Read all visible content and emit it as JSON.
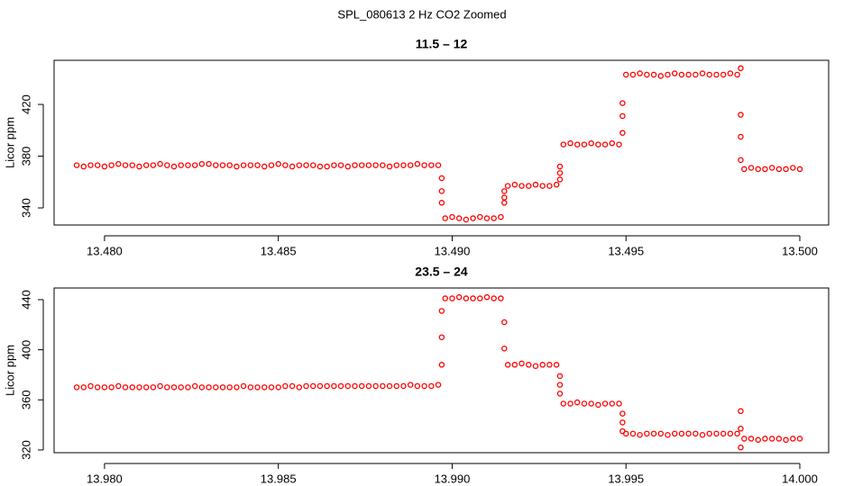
{
  "title": "SPL_080613  2 Hz CO2 Zoomed",
  "chart_data": [
    {
      "type": "scatter",
      "title": "11.5 – 12",
      "ylabel": "Licor ppm",
      "color": "#ff0000",
      "xlim": [
        13.47855,
        13.50083
      ],
      "ylim": [
        326.8,
        454.1
      ],
      "xticks": [
        {
          "value": 13.48,
          "label": "13.480"
        },
        13.485,
        {
          "value": 13.49,
          "label": "13.490"
        },
        13.495,
        {
          "value": 13.5,
          "label": "13.500"
        }
      ],
      "yticks": [
        340,
        380,
        420
      ],
      "x": [
        13.4792,
        13.4794,
        13.4796,
        13.4798,
        13.48,
        13.4802,
        13.4804,
        13.4806,
        13.4808,
        13.481,
        13.4812,
        13.4814,
        13.4816,
        13.4818,
        13.482,
        13.4822,
        13.4824,
        13.4826,
        13.4828,
        13.483,
        13.4832,
        13.4834,
        13.4836,
        13.4838,
        13.484,
        13.4842,
        13.4844,
        13.4846,
        13.4848,
        13.485,
        13.4852,
        13.4854,
        13.4856,
        13.4858,
        13.486,
        13.4862,
        13.4864,
        13.4866,
        13.4868,
        13.487,
        13.4872,
        13.4874,
        13.4876,
        13.4878,
        13.488,
        13.4882,
        13.4884,
        13.4886,
        13.4888,
        13.489,
        13.4892,
        13.4894,
        13.4896,
        13.4897,
        13.4897,
        13.4897,
        13.4898,
        13.49,
        13.4902,
        13.4904,
        13.4906,
        13.4908,
        13.491,
        13.4912,
        13.4914,
        13.4915,
        13.4915,
        13.4915,
        13.4916,
        13.4918,
        13.492,
        13.4922,
        13.4924,
        13.4926,
        13.4928,
        13.493,
        13.4931,
        13.4931,
        13.4931,
        13.4932,
        13.4934,
        13.4936,
        13.4938,
        13.494,
        13.4942,
        13.4944,
        13.4946,
        13.4948,
        13.4949,
        13.4949,
        13.4949,
        13.495,
        13.4952,
        13.4954,
        13.4956,
        13.4958,
        13.496,
        13.4962,
        13.4964,
        13.4966,
        13.4968,
        13.497,
        13.4972,
        13.4974,
        13.4976,
        13.4978,
        13.498,
        13.4982,
        13.4983,
        13.4983,
        13.4983,
        13.4983,
        13.4984,
        13.4986,
        13.4988,
        13.499,
        13.4992,
        13.4994,
        13.4996,
        13.4998,
        13.5
      ],
      "values": [
        373,
        372,
        373,
        373,
        372,
        373,
        374,
        373,
        373,
        372,
        373,
        373,
        374,
        373,
        372,
        373,
        373,
        373,
        374,
        374,
        373,
        373,
        373,
        372,
        373,
        373,
        373,
        372,
        373,
        374,
        373,
        372,
        373,
        373,
        373,
        372,
        372,
        373,
        373,
        372,
        373,
        373,
        373,
        373,
        373,
        372,
        373,
        373,
        373,
        374,
        373,
        373,
        373,
        363,
        353,
        344,
        332,
        333,
        332,
        331,
        332,
        333,
        332,
        332,
        333,
        344,
        348,
        353,
        357,
        358,
        357,
        357,
        358,
        357,
        357,
        358,
        362,
        367,
        372,
        389,
        390,
        389,
        389,
        390,
        389,
        389,
        390,
        389,
        398,
        411,
        421,
        443,
        443,
        444,
        443,
        443,
        442,
        443,
        444,
        443,
        443,
        443,
        444,
        443,
        443,
        443,
        444,
        443,
        448,
        412,
        395,
        377,
        370,
        371,
        370,
        370,
        371,
        370,
        370,
        371,
        370
      ]
    },
    {
      "type": "scatter",
      "title": "23.5 – 24",
      "ylabel": "Licor ppm",
      "color": "#ff0000",
      "xlim": [
        13.97855,
        14.00083
      ],
      "ylim": [
        317.8,
        449.3
      ],
      "xticks": [
        {
          "value": 13.98,
          "label": "13.980"
        },
        13.985,
        {
          "value": 13.99,
          "label": "13.990"
        },
        13.995,
        {
          "value": 14,
          "label": "14.000"
        }
      ],
      "yticks": [
        320,
        360,
        400,
        440
      ],
      "x": [
        13.9792,
        13.9794,
        13.9796,
        13.9798,
        13.98,
        13.9802,
        13.9804,
        13.9806,
        13.9808,
        13.981,
        13.9812,
        13.9814,
        13.9816,
        13.9818,
        13.982,
        13.9822,
        13.9824,
        13.9826,
        13.9828,
        13.983,
        13.9832,
        13.9834,
        13.9836,
        13.9838,
        13.984,
        13.9842,
        13.9844,
        13.9846,
        13.9848,
        13.985,
        13.9852,
        13.9854,
        13.9856,
        13.9858,
        13.986,
        13.9862,
        13.9864,
        13.9866,
        13.9868,
        13.987,
        13.9872,
        13.9874,
        13.9876,
        13.9878,
        13.988,
        13.9882,
        13.9884,
        13.9886,
        13.9888,
        13.989,
        13.9892,
        13.9894,
        13.9896,
        13.9897,
        13.9897,
        13.9897,
        13.9898,
        13.99,
        13.9902,
        13.9904,
        13.9906,
        13.9908,
        13.991,
        13.9912,
        13.9914,
        13.9915,
        13.9915,
        13.9916,
        13.9918,
        13.992,
        13.9922,
        13.9924,
        13.9926,
        13.9928,
        13.993,
        13.9931,
        13.9931,
        13.9931,
        13.9932,
        13.9934,
        13.9936,
        13.9938,
        13.994,
        13.9942,
        13.9944,
        13.9946,
        13.9948,
        13.9949,
        13.9949,
        13.9949,
        13.995,
        13.9952,
        13.9954,
        13.9956,
        13.9958,
        13.996,
        13.9962,
        13.9964,
        13.9966,
        13.9968,
        13.997,
        13.9972,
        13.9974,
        13.9976,
        13.9978,
        13.998,
        13.9982,
        13.9983,
        13.9983,
        13.9983,
        13.9984,
        13.9986,
        13.9988,
        13.999,
        13.9992,
        13.9994,
        13.9996,
        13.9998,
        14
      ],
      "values": [
        370,
        370,
        371,
        370,
        370,
        370,
        371,
        370,
        370,
        370,
        370,
        370,
        371,
        370,
        370,
        370,
        370,
        371,
        370,
        370,
        370,
        370,
        370,
        370,
        371,
        370,
        370,
        370,
        370,
        370,
        371,
        371,
        370,
        371,
        371,
        371,
        371,
        371,
        371,
        371,
        371,
        371,
        371,
        371,
        371,
        371,
        371,
        371,
        372,
        371,
        371,
        371,
        372,
        388,
        410,
        431,
        441,
        441,
        442,
        441,
        441,
        441,
        442,
        441,
        441,
        422,
        401,
        388,
        388,
        389,
        388,
        387,
        388,
        388,
        388,
        379,
        372,
        365,
        357,
        357,
        358,
        357,
        357,
        356,
        357,
        357,
        357,
        349,
        342,
        335,
        333,
        333,
        332,
        333,
        333,
        333,
        332,
        333,
        333,
        333,
        333,
        332,
        333,
        333,
        333,
        333,
        333,
        351,
        337,
        322,
        329,
        329,
        328,
        329,
        329,
        329,
        328,
        329,
        329
      ]
    }
  ]
}
